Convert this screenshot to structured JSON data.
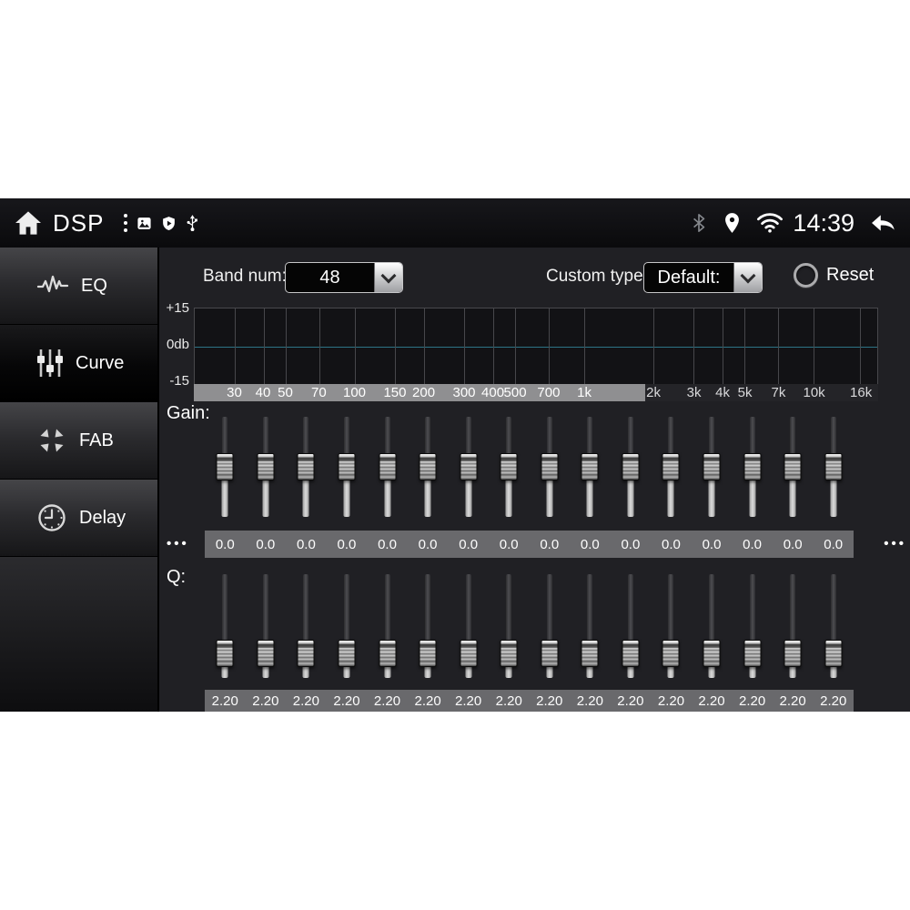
{
  "status_bar": {
    "title": "DSP",
    "time": "14:39",
    "left_icons": [
      "home-icon",
      "overflow-menu-icon",
      "gallery-icon",
      "shield-play-icon",
      "usb-icon"
    ],
    "right_icons": [
      "bluetooth-icon",
      "location-icon",
      "wifi-icon",
      "back-icon"
    ]
  },
  "sidebar": {
    "items": [
      {
        "id": "eq",
        "label": "EQ",
        "icon": "waveform-icon",
        "selected": false
      },
      {
        "id": "curve",
        "label": "Curve",
        "icon": "sliders-icon",
        "selected": true
      },
      {
        "id": "fab",
        "label": "FAB",
        "icon": "fab-arrows-icon",
        "selected": false
      },
      {
        "id": "delay",
        "label": "Delay",
        "icon": "clock-icon",
        "selected": false
      }
    ]
  },
  "controls": {
    "band_num_label": "Band num:",
    "band_num_value": "48",
    "custom_type_label": "Custom type:",
    "custom_type_value": "Default:",
    "reset_label": "Reset"
  },
  "chart_data": {
    "type": "line",
    "title": "EQ frequency response display",
    "x_scale": "log",
    "x_range_hz": [
      20,
      19000
    ],
    "x_ticks": [
      {
        "hz": 30,
        "label": "30"
      },
      {
        "hz": 40,
        "label": "40"
      },
      {
        "hz": 50,
        "label": "50"
      },
      {
        "hz": 70,
        "label": "70"
      },
      {
        "hz": 100,
        "label": "100"
      },
      {
        "hz": 150,
        "label": "150"
      },
      {
        "hz": 200,
        "label": "200"
      },
      {
        "hz": 300,
        "label": "300"
      },
      {
        "hz": 400,
        "label": "400"
      },
      {
        "hz": 500,
        "label": "500"
      },
      {
        "hz": 700,
        "label": "700"
      },
      {
        "hz": 1000,
        "label": "1k"
      },
      {
        "hz": 2000,
        "label": "2k"
      },
      {
        "hz": 3000,
        "label": "3k"
      },
      {
        "hz": 4000,
        "label": "4k"
      },
      {
        "hz": 5000,
        "label": "5k"
      },
      {
        "hz": 7000,
        "label": "7k"
      },
      {
        "hz": 10000,
        "label": "10k"
      },
      {
        "hz": 16000,
        "label": "16k"
      }
    ],
    "y_ticks": [
      "+15",
      "0db",
      "-15"
    ],
    "ylim": [
      -15,
      15
    ],
    "series": [
      {
        "name": "eq-response-curve",
        "flat_value_db": 0.0,
        "color": "#2d7486"
      }
    ],
    "grid": true,
    "highlight_end_pct": 66
  },
  "gain": {
    "label": "Gain:",
    "values": [
      "0.0",
      "0.0",
      "0.0",
      "0.0",
      "0.0",
      "0.0",
      "0.0",
      "0.0",
      "0.0",
      "0.0",
      "0.0",
      "0.0",
      "0.0",
      "0.0",
      "0.0",
      "0.0"
    ],
    "slider_pct": 50,
    "more_left": "•••",
    "more_right": "•••"
  },
  "q": {
    "label": "Q:",
    "values": [
      "2.20",
      "2.20",
      "2.20",
      "2.20",
      "2.20",
      "2.20",
      "2.20",
      "2.20",
      "2.20",
      "2.20",
      "2.20",
      "2.20",
      "2.20",
      "2.20",
      "2.20",
      "2.20"
    ],
    "slider_pct": 76
  }
}
